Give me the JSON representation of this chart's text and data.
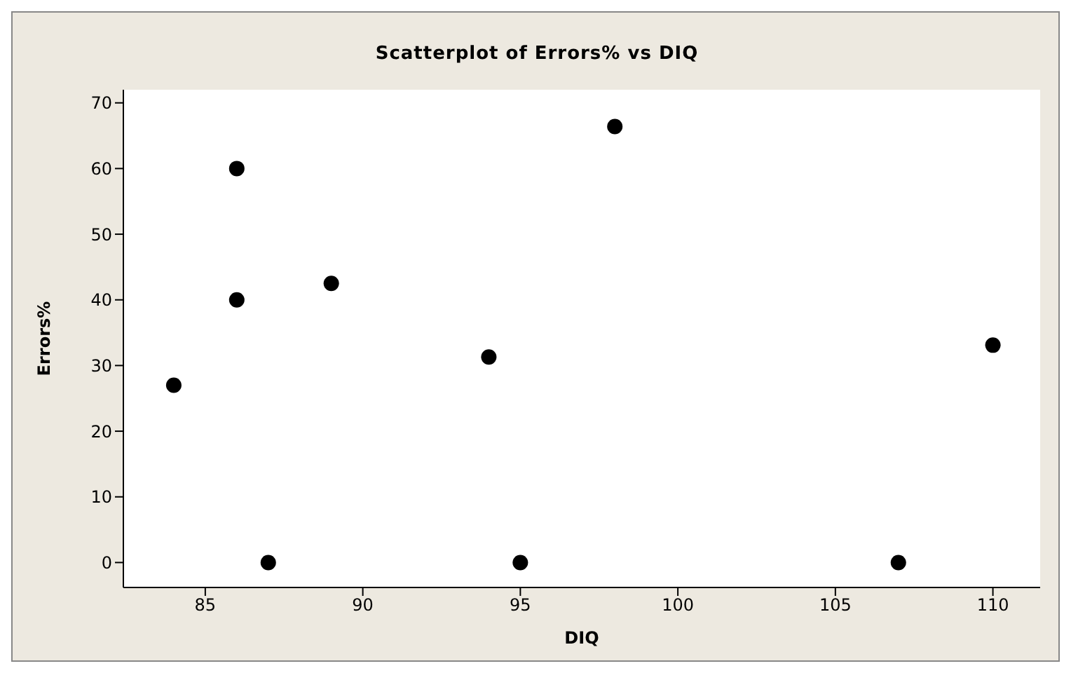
{
  "chart_data": {
    "type": "scatter",
    "title": "Scatterplot of Errors% vs DIQ",
    "xlabel": "DIQ",
    "ylabel": "Errors%",
    "x": [
      84,
      86,
      86,
      87,
      89,
      94,
      95,
      98,
      107,
      110
    ],
    "series": [
      {
        "color": "#000000",
        "values": [
          27,
          60,
          40,
          0,
          42.5,
          31.3,
          0,
          66.4,
          0,
          33.1
        ]
      }
    ],
    "xlim": [
      82.4,
      111.5
    ],
    "xticks": [
      85,
      90,
      95,
      100,
      105,
      110
    ],
    "ylim": [
      -3.8,
      72
    ],
    "yticks": [
      0,
      10,
      20,
      30,
      40,
      50,
      60,
      70
    ],
    "grid": false,
    "legend": false,
    "marker": "circle"
  }
}
